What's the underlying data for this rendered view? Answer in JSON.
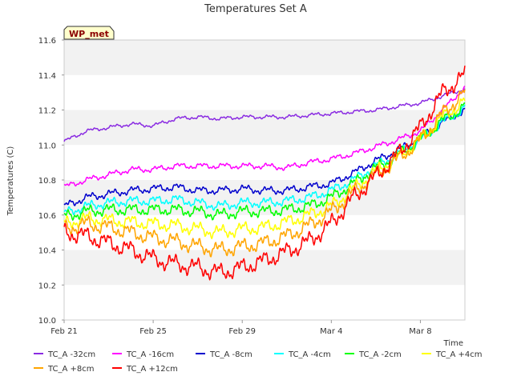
{
  "chart_data": {
    "type": "line",
    "title": "Temperatures Set A",
    "xlabel": "Time",
    "ylabel": "Temperatures (C)",
    "badge": "WP_met",
    "ylim": [
      10.0,
      11.6
    ],
    "yticks": [
      "10.0",
      "10.2",
      "10.4",
      "10.6",
      "10.8",
      "11.0",
      "11.2",
      "11.4",
      "11.6"
    ],
    "xlim_days": [
      0,
      18
    ],
    "xticks": [
      {
        "label": "Feb 21",
        "day": 0.0
      },
      {
        "label": "Feb 25",
        "day": 4.0
      },
      {
        "label": "Feb 29",
        "day": 8.0
      },
      {
        "label": "Mar 4",
        "day": 12.0
      },
      {
        "label": "Mar 8",
        "day": 16.0
      }
    ],
    "grid": "horizontal bands",
    "legend_position": "bottom",
    "x_days": [
      0.0,
      1.0,
      2.0,
      3.0,
      4.0,
      5.0,
      6.0,
      7.0,
      8.0,
      9.0,
      10.0,
      11.0,
      12.0,
      13.0,
      14.0,
      15.0,
      16.0,
      17.0,
      18.0
    ],
    "series": [
      {
        "name": "TC_A -32cm",
        "color": "#8A2BE2",
        "values": [
          11.02,
          11.08,
          11.1,
          11.12,
          11.11,
          11.15,
          11.16,
          11.15,
          11.16,
          11.16,
          11.16,
          11.17,
          11.18,
          11.19,
          11.2,
          11.22,
          11.24,
          11.28,
          11.32
        ]
      },
      {
        "name": "TC_A -16cm",
        "color": "#FF00FF",
        "values": [
          10.76,
          10.8,
          10.83,
          10.86,
          10.86,
          10.88,
          10.88,
          10.88,
          10.88,
          10.88,
          10.87,
          10.9,
          10.92,
          10.95,
          10.99,
          11.03,
          11.08,
          11.2,
          11.33
        ]
      },
      {
        "name": "TC_A -8cm",
        "color": "#0000CD",
        "values": [
          10.65,
          10.7,
          10.72,
          10.74,
          10.75,
          10.76,
          10.74,
          10.74,
          10.75,
          10.74,
          10.74,
          10.76,
          10.78,
          10.84,
          10.91,
          10.97,
          11.04,
          11.13,
          11.2
        ]
      },
      {
        "name": "TC_A -4cm",
        "color": "#00FFFF",
        "values": [
          10.61,
          10.65,
          10.67,
          10.68,
          10.68,
          10.69,
          10.67,
          10.65,
          10.67,
          10.67,
          10.68,
          10.7,
          10.74,
          10.8,
          10.88,
          10.95,
          11.03,
          11.13,
          11.21
        ]
      },
      {
        "name": "TC_A -2cm",
        "color": "#00FF00",
        "values": [
          10.59,
          10.62,
          10.63,
          10.63,
          10.63,
          10.63,
          10.62,
          10.6,
          10.62,
          10.62,
          10.63,
          10.65,
          10.7,
          10.78,
          10.87,
          10.94,
          11.03,
          11.14,
          11.22
        ]
      },
      {
        "name": "TC_A +4cm",
        "color": "#FFFF00",
        "values": [
          10.55,
          10.58,
          10.57,
          10.56,
          10.55,
          10.54,
          10.52,
          10.5,
          10.52,
          10.53,
          10.56,
          10.6,
          10.65,
          10.75,
          10.85,
          10.93,
          11.03,
          11.16,
          11.25
        ]
      },
      {
        "name": "TC_A +8cm",
        "color": "#FFA500",
        "values": [
          10.52,
          10.55,
          10.53,
          10.5,
          10.47,
          10.45,
          10.42,
          10.4,
          10.42,
          10.44,
          10.48,
          10.54,
          10.62,
          10.73,
          10.83,
          10.92,
          11.03,
          11.18,
          11.3
        ]
      },
      {
        "name": "TC_A +12cm",
        "color": "#FF0000",
        "values": [
          10.5,
          10.48,
          10.44,
          10.4,
          10.35,
          10.32,
          10.3,
          10.27,
          10.3,
          10.34,
          10.39,
          10.45,
          10.55,
          10.7,
          10.82,
          10.95,
          11.1,
          11.3,
          11.4
        ]
      }
    ]
  }
}
